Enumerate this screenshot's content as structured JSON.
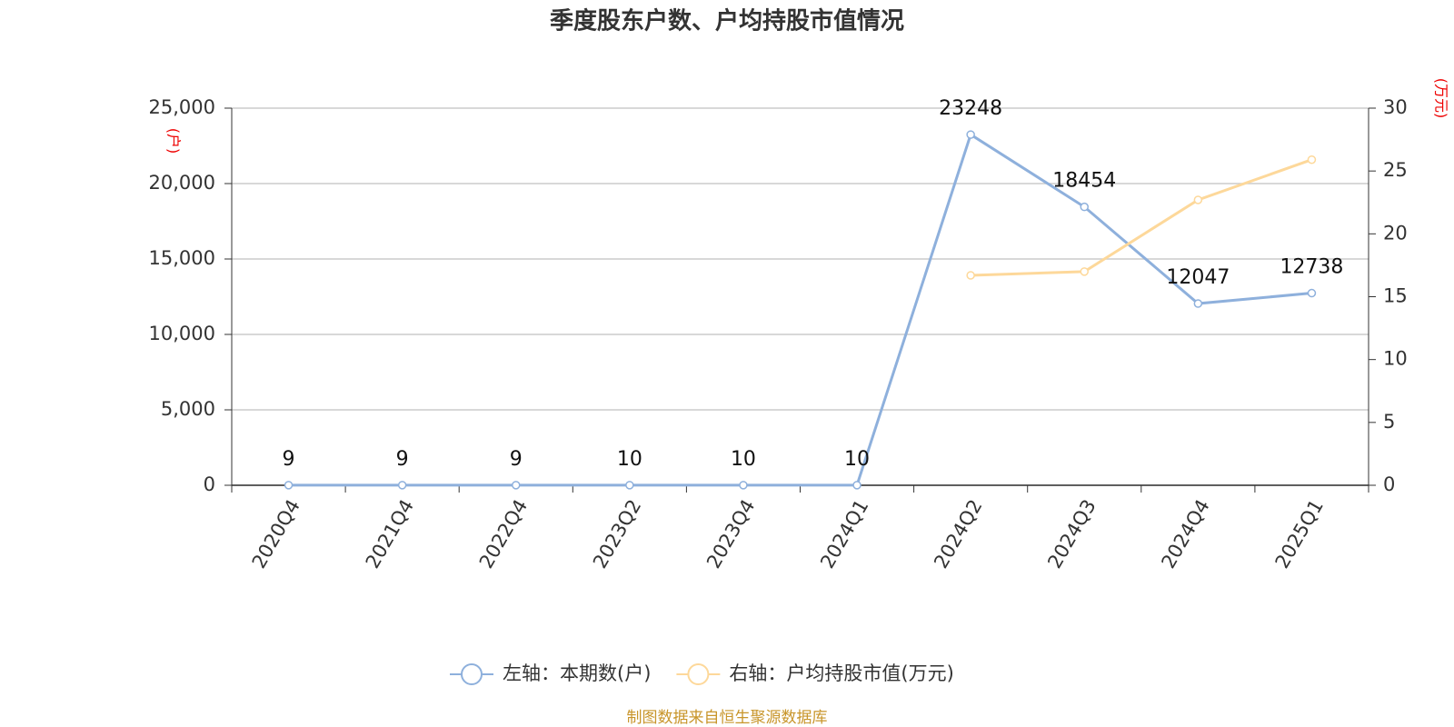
{
  "chart_data": {
    "type": "line",
    "title": "季度股东户数、户均持股市值情况",
    "y_unit": "(户)",
    "y2_unit": "(万元)",
    "source": "制图数据来自恒生聚源数据库",
    "categories": [
      "2020Q4",
      "2021Q4",
      "2022Q4",
      "2023Q2",
      "2023Q4",
      "2024Q1",
      "2024Q2",
      "2024Q3",
      "2024Q4",
      "2025Q1"
    ],
    "series": [
      {
        "name": "左轴：本期数(户)",
        "color": "#8eb0dc",
        "axis": "y",
        "data_labels": true,
        "values": [
          9,
          9,
          9,
          10,
          10,
          10,
          23248,
          18454,
          12047,
          12738
        ]
      },
      {
        "name": "右轴：户均持股市值(万元)",
        "color": "#fdd89a",
        "axis": "y2",
        "data_labels": false,
        "values": [
          null,
          null,
          null,
          null,
          null,
          null,
          16.7,
          17.0,
          22.7,
          25.9
        ]
      }
    ],
    "ylim": [
      0,
      25000
    ],
    "yticks": [
      0,
      {
        "value": 5000,
        "label": "5,000"
      },
      {
        "value": 10000,
        "label": "10,000"
      },
      {
        "value": 15000,
        "label": "15,000"
      },
      {
        "value": 20000,
        "label": "20,000"
      },
      {
        "value": 25000,
        "label": "25,000"
      }
    ],
    "y2lim": [
      0,
      30
    ],
    "y2ticks": [
      0,
      5,
      10,
      15,
      20,
      25,
      30
    ],
    "grid": true
  }
}
